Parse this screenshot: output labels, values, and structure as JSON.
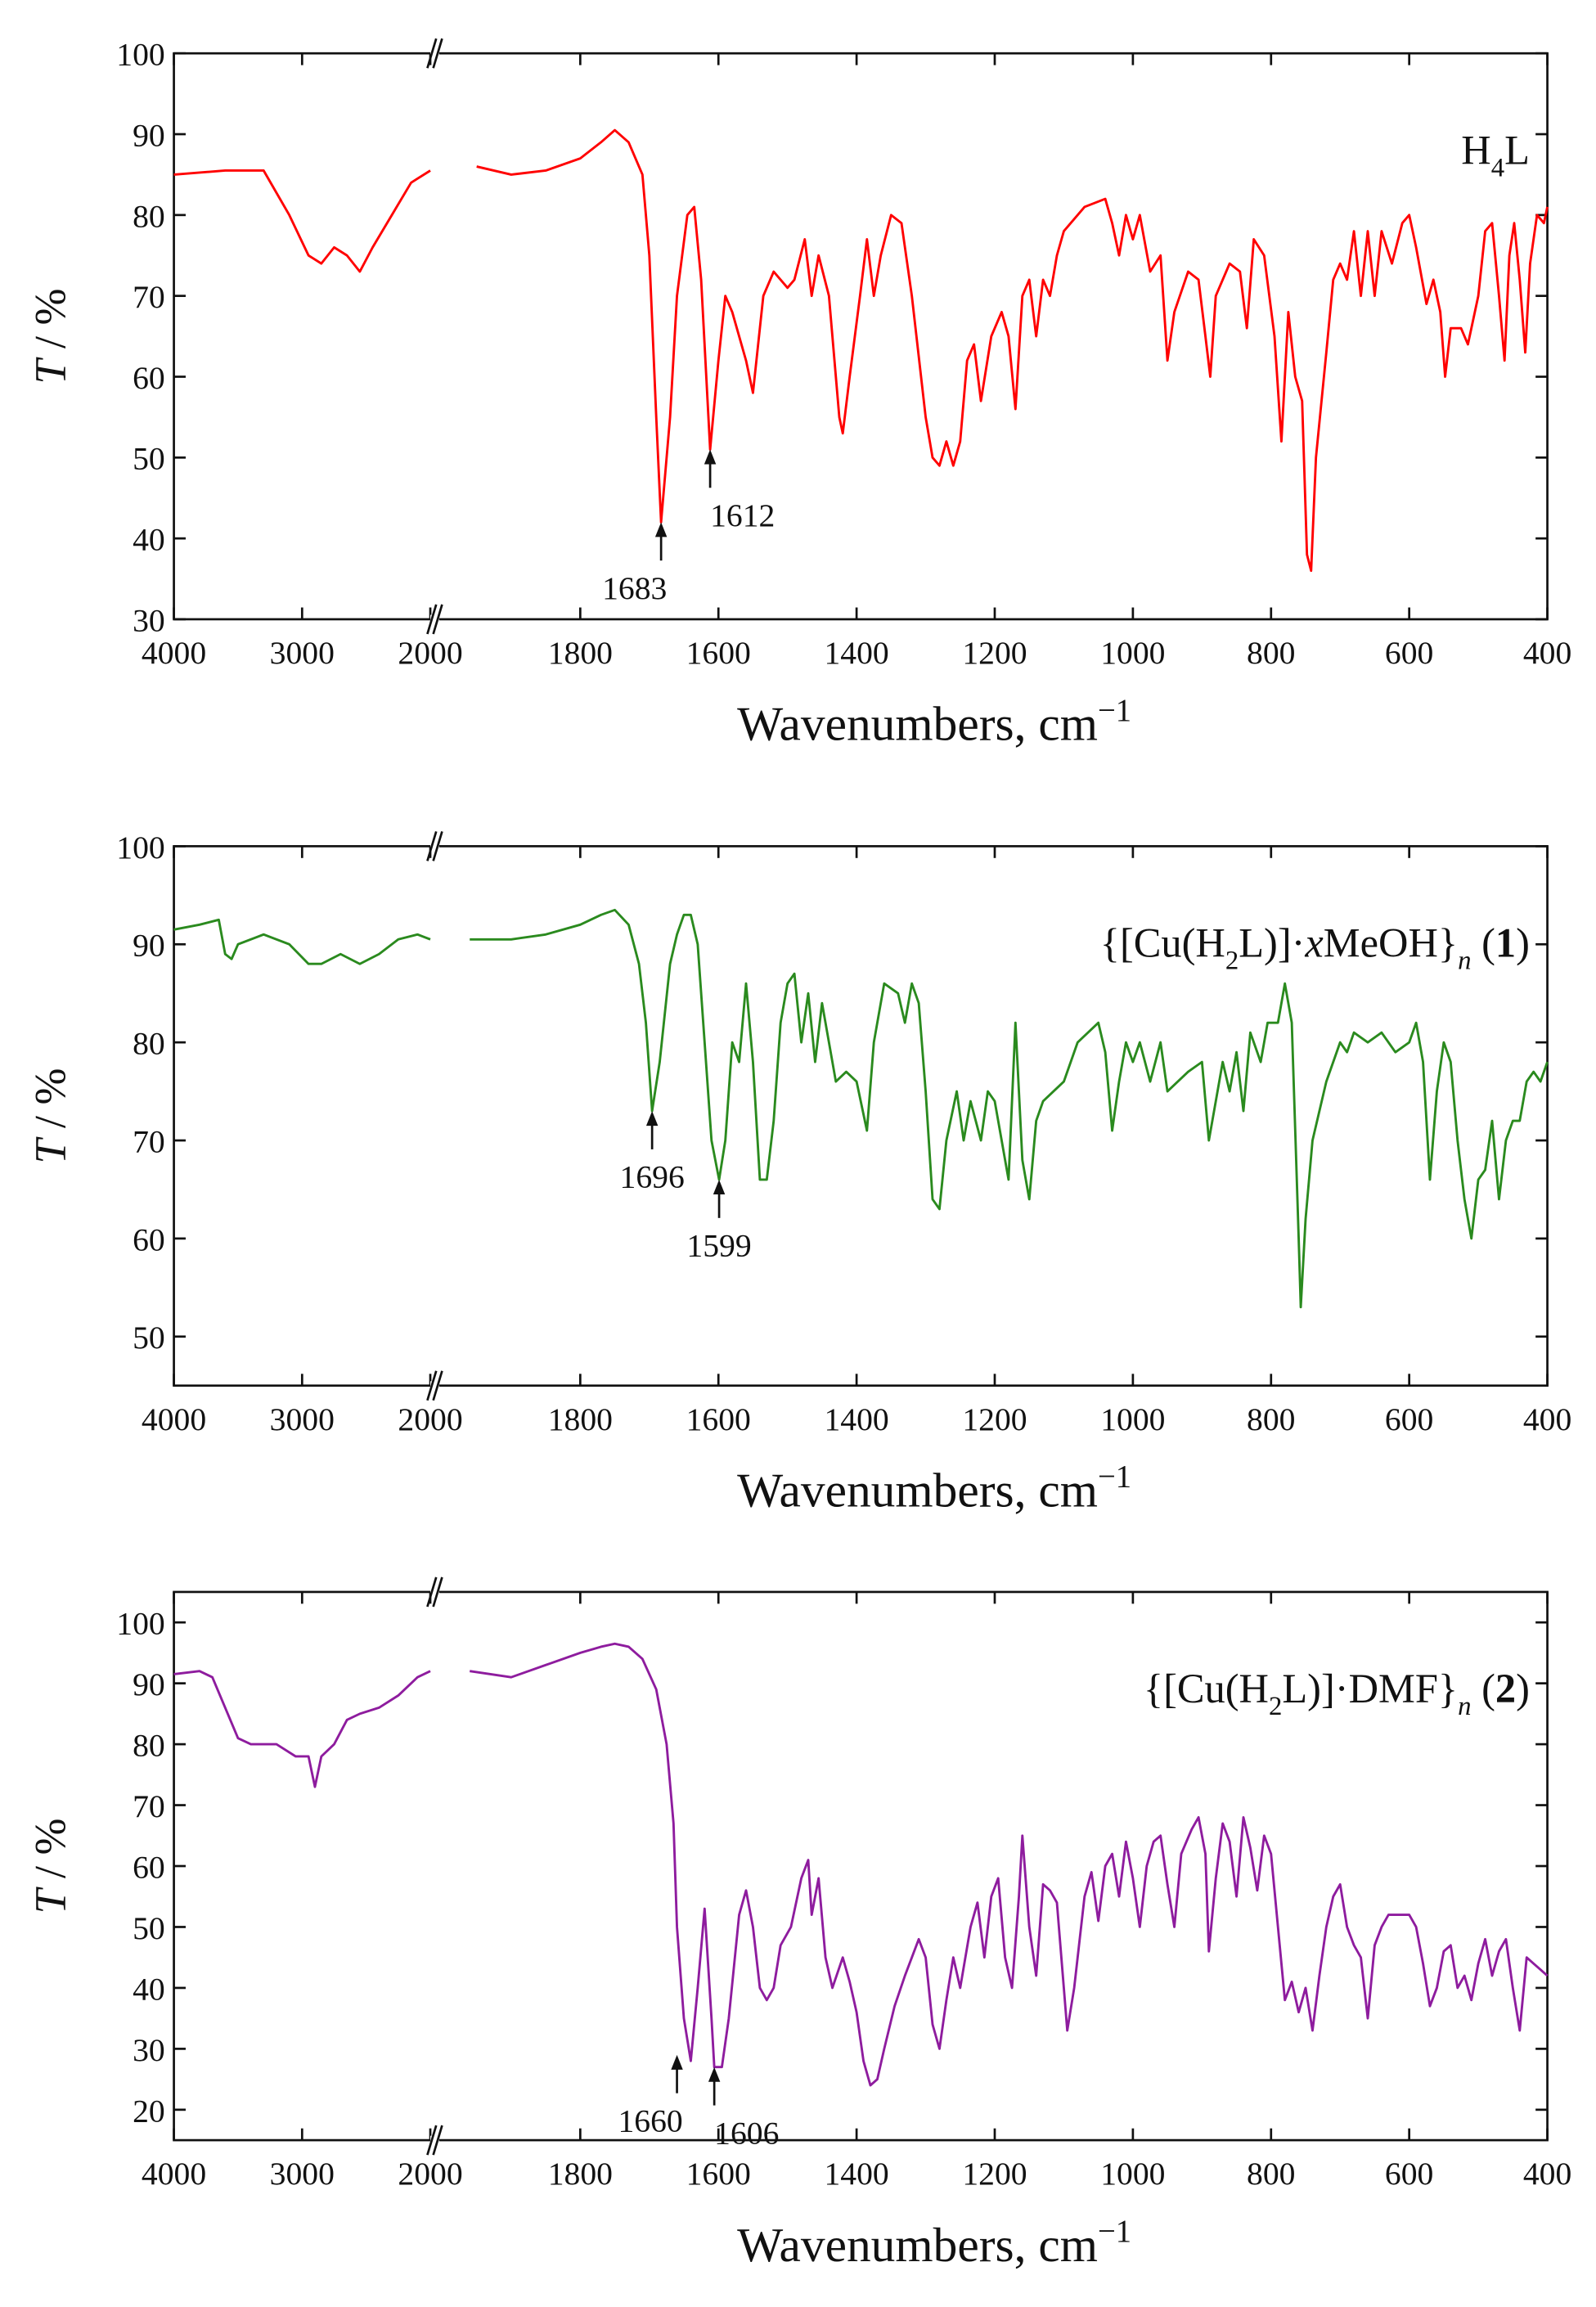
{
  "chart_data": [
    {
      "type": "line",
      "color": "#ff0000",
      "label": [
        {
          "text": "H"
        },
        {
          "text": "4",
          "sub": true
        },
        {
          "text": "L"
        }
      ],
      "xlabel": [
        {
          "text": "Wavenumbers, cm"
        },
        {
          "text": "−1",
          "sup": true
        }
      ],
      "ylabel": [
        {
          "text": "T",
          "italic": true
        },
        {
          "text": " / %"
        }
      ],
      "xlim": [
        [
          4000,
          2000
        ],
        [
          2000,
          400
        ]
      ],
      "xticks": [
        4000,
        3000,
        2000,
        1800,
        1600,
        1400,
        1200,
        1000,
        800,
        600,
        400
      ],
      "ylim": [
        30,
        100
      ],
      "yticks": [
        30,
        40,
        50,
        60,
        70,
        80,
        90,
        100
      ],
      "x": [
        4000,
        3600,
        3300,
        3100,
        2950,
        2850,
        2750,
        2650,
        2550,
        2450,
        2300,
        2150,
        2000,
        1950,
        1900,
        1850,
        1800,
        1770,
        1750,
        1730,
        1710,
        1700,
        1690,
        1683,
        1670,
        1660,
        1645,
        1635,
        1625,
        1612,
        1600,
        1590,
        1580,
        1560,
        1550,
        1535,
        1520,
        1500,
        1490,
        1475,
        1465,
        1455,
        1440,
        1425,
        1420,
        1410,
        1395,
        1385,
        1375,
        1365,
        1350,
        1335,
        1320,
        1300,
        1290,
        1280,
        1270,
        1260,
        1250,
        1240,
        1230,
        1220,
        1205,
        1190,
        1180,
        1170,
        1160,
        1150,
        1140,
        1130,
        1120,
        1110,
        1100,
        1070,
        1040,
        1030,
        1020,
        1010,
        1000,
        990,
        975,
        960,
        950,
        940,
        920,
        905,
        895,
        888,
        880,
        860,
        845,
        835,
        825,
        810,
        795,
        785,
        775,
        765,
        755,
        748,
        742,
        735,
        720,
        710,
        700,
        690,
        680,
        670,
        660,
        650,
        640,
        625,
        610,
        600,
        590,
        575,
        565,
        555,
        548,
        540,
        525,
        515,
        500,
        490,
        480,
        470,
        462,
        455,
        448,
        440,
        432,
        425,
        415,
        405,
        400
      ],
      "values": [
        85,
        85.5,
        85.5,
        80,
        75,
        74,
        76,
        75,
        73,
        76,
        80,
        84,
        85.5,
        86,
        85,
        85.5,
        87,
        89,
        90.5,
        89,
        85,
        75,
        55,
        42,
        55,
        70,
        80,
        81,
        72,
        51,
        62,
        70,
        68,
        62,
        58,
        70,
        73,
        71,
        72,
        77,
        70,
        75,
        70,
        55,
        53,
        60,
        70,
        77,
        70,
        75,
        80,
        79,
        70,
        55,
        50,
        49,
        52,
        49,
        52,
        62,
        64,
        57,
        65,
        68,
        65,
        56,
        70,
        72,
        65,
        72,
        70,
        75,
        78,
        81,
        82,
        79,
        75,
        80,
        77,
        80,
        73,
        75,
        62,
        68,
        73,
        72,
        65,
        60,
        70,
        74,
        73,
        66,
        77,
        75,
        65,
        52,
        68,
        60,
        57,
        38,
        36,
        50,
        63,
        72,
        74,
        72,
        78,
        70,
        78,
        70,
        78,
        74,
        79,
        80,
        76,
        69,
        72,
        68,
        60,
        66,
        66,
        64,
        70,
        78,
        79,
        70,
        62,
        75,
        79,
        72,
        63,
        74,
        80,
        79,
        81
      ],
      "annotations": [
        {
          "text": "1683",
          "x": 1683,
          "y": 42
        },
        {
          "text": "1612",
          "x": 1612,
          "y": 51
        }
      ]
    },
    {
      "type": "line",
      "color": "#2a8a1e",
      "label": [
        {
          "text": "{[Cu(H"
        },
        {
          "text": "2",
          "sub": true
        },
        {
          "text": "L)]·"
        },
        {
          "text": "x",
          "italic": true
        },
        {
          "text": "MeOH}"
        },
        {
          "text": "n",
          "sub": true,
          "italic": true
        },
        {
          "text": " ("
        },
        {
          "text": "1",
          "bold": true
        },
        {
          "text": ")"
        }
      ],
      "xlabel": [
        {
          "text": "Wavenumbers, cm"
        },
        {
          "text": "−1",
          "sup": true
        }
      ],
      "ylabel": [
        {
          "text": "T",
          "italic": true
        },
        {
          "text": " / %"
        }
      ],
      "xlim": [
        [
          4000,
          2000
        ],
        [
          2000,
          400
        ]
      ],
      "xticks": [
        4000,
        3000,
        2000,
        1800,
        1600,
        1400,
        1200,
        1000,
        800,
        600,
        400
      ],
      "ylim": [
        45,
        100
      ],
      "yticks": [
        50,
        60,
        70,
        80,
        90,
        100
      ],
      "x": [
        4000,
        3800,
        3650,
        3600,
        3550,
        3500,
        3300,
        3100,
        2950,
        2850,
        2700,
        2550,
        2400,
        2250,
        2100,
        2000,
        1960,
        1900,
        1850,
        1800,
        1770,
        1750,
        1730,
        1715,
        1705,
        1696,
        1685,
        1670,
        1660,
        1650,
        1640,
        1630,
        1620,
        1610,
        1599,
        1590,
        1580,
        1570,
        1560,
        1550,
        1540,
        1530,
        1520,
        1510,
        1500,
        1490,
        1480,
        1470,
        1460,
        1450,
        1440,
        1430,
        1415,
        1400,
        1385,
        1375,
        1360,
        1340,
        1330,
        1320,
        1310,
        1300,
        1290,
        1280,
        1270,
        1255,
        1245,
        1235,
        1220,
        1210,
        1200,
        1190,
        1180,
        1170,
        1160,
        1150,
        1140,
        1130,
        1100,
        1080,
        1050,
        1040,
        1030,
        1020,
        1010,
        1000,
        990,
        975,
        960,
        950,
        920,
        900,
        890,
        880,
        870,
        860,
        850,
        840,
        830,
        815,
        805,
        790,
        780,
        770,
        760,
        757,
        750,
        740,
        720,
        700,
        690,
        680,
        660,
        640,
        620,
        600,
        590,
        580,
        570,
        560,
        550,
        540,
        530,
        520,
        510,
        500,
        490,
        480,
        470,
        460,
        450,
        440,
        430,
        420,
        410,
        400
      ],
      "values": [
        91.5,
        92,
        92.5,
        89,
        88.5,
        90,
        91,
        90,
        88,
        88,
        89,
        88,
        89,
        90.5,
        91,
        90.5,
        90.5,
        90.5,
        91,
        92,
        93,
        93.5,
        92,
        88,
        82,
        73,
        78,
        88,
        91,
        93,
        93,
        90,
        80,
        70,
        66,
        70,
        80,
        78,
        86,
        78,
        66,
        66,
        72,
        82,
        86,
        87,
        80,
        85,
        78,
        84,
        80,
        76,
        77,
        76,
        71,
        80,
        86,
        85,
        82,
        86,
        84,
        75,
        64,
        63,
        70,
        75,
        70,
        74,
        70,
        75,
        74,
        70,
        66,
        82,
        68,
        64,
        72,
        74,
        76,
        80,
        82,
        79,
        71,
        76,
        80,
        78,
        80,
        76,
        80,
        75,
        77,
        78,
        70,
        74,
        78,
        75,
        79,
        73,
        81,
        78,
        82,
        82,
        86,
        82,
        60,
        53,
        62,
        70,
        76,
        80,
        79,
        81,
        80,
        81,
        79,
        80,
        82,
        78,
        66,
        75,
        80,
        78,
        70,
        64,
        60,
        66,
        67,
        72,
        64,
        70,
        72,
        72,
        76,
        77,
        76,
        78
      ],
      "annotations": [
        {
          "text": "1696",
          "x": 1696,
          "y": 73
        },
        {
          "text": "1599",
          "x": 1599,
          "y": 66
        }
      ]
    },
    {
      "type": "line",
      "color": "#8e1c9e",
      "label": [
        {
          "text": "{[Cu(H"
        },
        {
          "text": "2",
          "sub": true
        },
        {
          "text": "L)]·DMF}"
        },
        {
          "text": "n",
          "sub": true,
          "italic": true
        },
        {
          "text": " ("
        },
        {
          "text": "2",
          "bold": true
        },
        {
          "text": ")"
        }
      ],
      "xlabel": [
        {
          "text": "Wavenumbers, cm"
        },
        {
          "text": "−1",
          "sup": true
        }
      ],
      "ylabel": [
        {
          "text": "T",
          "italic": true
        },
        {
          "text": " / %"
        }
      ],
      "xlim": [
        [
          4000,
          2000
        ],
        [
          2000,
          400
        ]
      ],
      "xticks": [
        4000,
        3000,
        2000,
        1800,
        1600,
        1400,
        1200,
        1000,
        800,
        600,
        400
      ],
      "ylim": [
        15,
        105
      ],
      "yticks": [
        20,
        30,
        40,
        50,
        60,
        70,
        80,
        90,
        100
      ],
      "x": [
        4000,
        3800,
        3700,
        3600,
        3500,
        3400,
        3200,
        3050,
        2950,
        2900,
        2850,
        2750,
        2650,
        2550,
        2400,
        2250,
        2100,
        2000,
        1960,
        1900,
        1850,
        1800,
        1770,
        1750,
        1730,
        1710,
        1690,
        1675,
        1665,
        1660,
        1650,
        1640,
        1630,
        1620,
        1610,
        1606,
        1595,
        1585,
        1570,
        1560,
        1550,
        1540,
        1530,
        1520,
        1510,
        1495,
        1480,
        1470,
        1465,
        1455,
        1445,
        1435,
        1420,
        1410,
        1400,
        1390,
        1380,
        1370,
        1360,
        1345,
        1330,
        1320,
        1310,
        1300,
        1290,
        1280,
        1270,
        1260,
        1250,
        1235,
        1225,
        1215,
        1205,
        1195,
        1185,
        1175,
        1165,
        1160,
        1150,
        1140,
        1130,
        1120,
        1110,
        1100,
        1095,
        1085,
        1070,
        1060,
        1050,
        1040,
        1030,
        1020,
        1010,
        1000,
        990,
        980,
        970,
        960,
        950,
        940,
        930,
        915,
        905,
        895,
        890,
        880,
        870,
        860,
        850,
        840,
        830,
        820,
        810,
        800,
        790,
        780,
        770,
        760,
        750,
        740,
        730,
        720,
        710,
        700,
        690,
        680,
        670,
        660,
        650,
        640,
        630,
        600,
        590,
        580,
        570,
        560,
        550,
        540,
        530,
        520,
        510,
        500,
        490,
        480,
        470,
        460,
        450,
        440,
        430,
        420,
        410,
        400
      ],
      "values": [
        91.5,
        92,
        91,
        86,
        81,
        80,
        80,
        78,
        78,
        73,
        78,
        80,
        84,
        85,
        86,
        88,
        91,
        92,
        92,
        91,
        93,
        95,
        96,
        96.5,
        96,
        94,
        89,
        80,
        67,
        50,
        35,
        28,
        40,
        53,
        35,
        27,
        27,
        35,
        52,
        56,
        50,
        40,
        38,
        40,
        47,
        50,
        58,
        61,
        52,
        58,
        45,
        40,
        45,
        41,
        36,
        28,
        24,
        25,
        30,
        37,
        42,
        45,
        48,
        45,
        34,
        30,
        38,
        45,
        40,
        50,
        54,
        45,
        55,
        58,
        45,
        40,
        55,
        65,
        50,
        42,
        57,
        56,
        54,
        40,
        33,
        40,
        55,
        59,
        51,
        60,
        62,
        55,
        64,
        58,
        50,
        60,
        64,
        65,
        57,
        50,
        62,
        66,
        68,
        62,
        46,
        58,
        67,
        64,
        55,
        68,
        63,
        56,
        65,
        62,
        50,
        38,
        41,
        36,
        40,
        33,
        42,
        50,
        55,
        57,
        50,
        47,
        45,
        35,
        47,
        50,
        52,
        52,
        50,
        44,
        37,
        40,
        46,
        47,
        40,
        42,
        38,
        44,
        48,
        42,
        46,
        48,
        40,
        33,
        45,
        44,
        43,
        42
      ],
      "annotations": [
        {
          "text": "1660",
          "x": 1660,
          "y": 29
        },
        {
          "text": "1606",
          "x": 1606,
          "y": 27
        }
      ]
    }
  ]
}
